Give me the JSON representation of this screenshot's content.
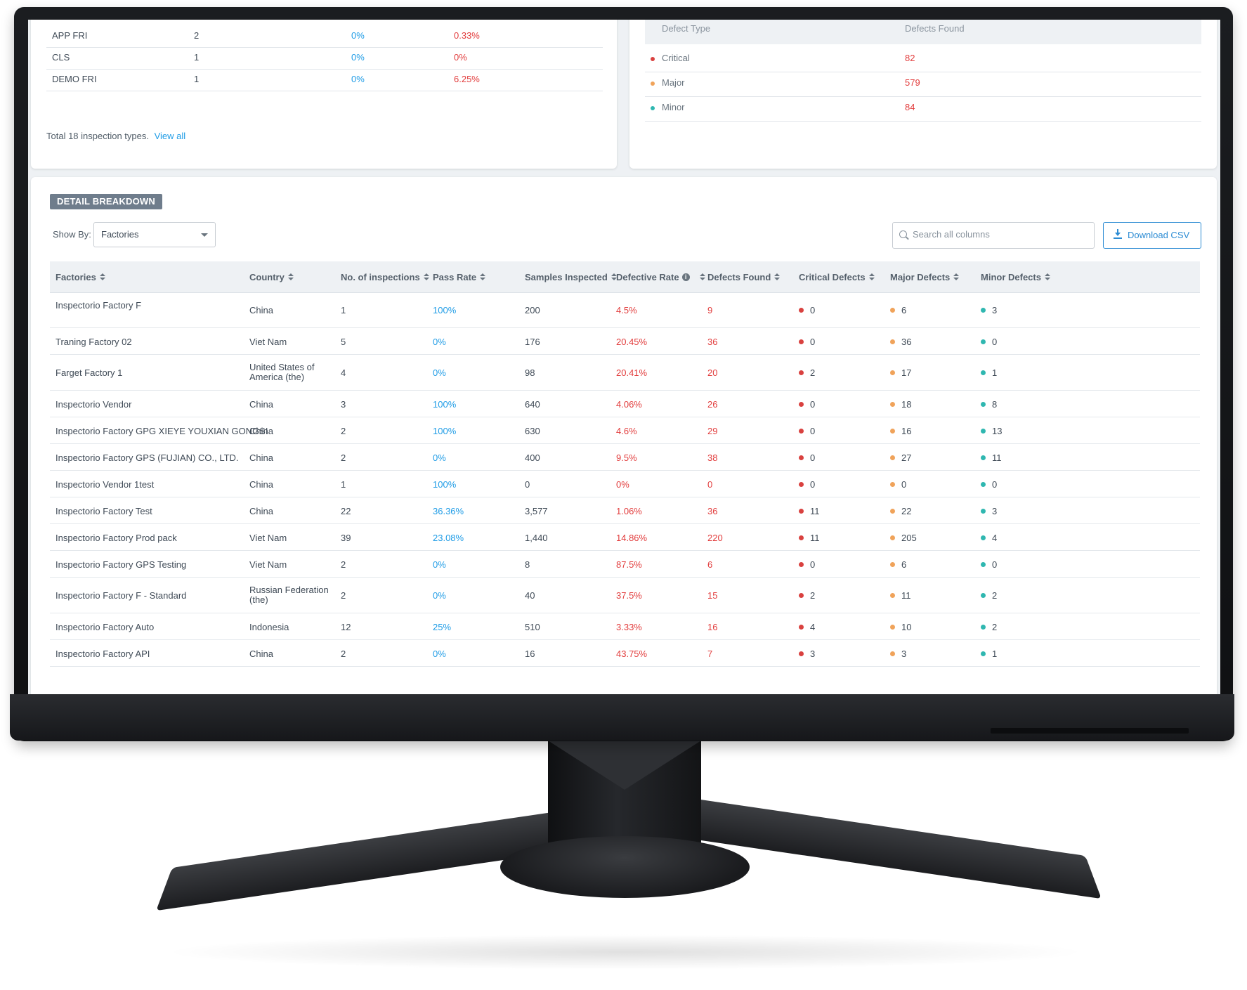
{
  "colors": {
    "critical": "#d9413f",
    "major": "#f0a35a",
    "minor": "#2fb7b0",
    "pass_blue": "#1f9ce6",
    "rate_red": "#e23d3d",
    "badge_bg": "#6f7d8c"
  },
  "inspection_types": {
    "rows": [
      {
        "type": "APP FRI",
        "count": "2",
        "pass_rate": "0%",
        "defective_rate": "0.33%"
      },
      {
        "type": "CLS",
        "count": "1",
        "pass_rate": "0%",
        "defective_rate": "0%"
      },
      {
        "type": "DEMO FRI",
        "count": "1",
        "pass_rate": "0%",
        "defective_rate": "6.25%"
      }
    ],
    "total_text": "Total 18 inspection types.",
    "view_all": "View all"
  },
  "defect_types": {
    "header_type": "Defect Type",
    "header_found": "Defects Found",
    "rows": [
      {
        "name": "Critical",
        "value": "82",
        "color": "#d9413f"
      },
      {
        "name": "Major",
        "value": "579",
        "color": "#f0a35a"
      },
      {
        "name": "Minor",
        "value": "84",
        "color": "#2fb7b0"
      }
    ]
  },
  "detail": {
    "badge": "DETAIL BREAKDOWN",
    "show_by_label": "Show By:",
    "show_by_value": "Factories",
    "search_placeholder": "Search all columns",
    "download_label": "Download CSV",
    "columns": {
      "factory": "Factories",
      "country": "Country",
      "inspections": "No. of inspections",
      "pass_rate": "Pass Rate",
      "samples": "Samples Inspected",
      "defective_rate": "Defective Rate",
      "defects_found": "Defects Found",
      "critical": "Critical Defects",
      "major": "Major Defects",
      "minor": "Minor Defects"
    },
    "rows": [
      {
        "factory": "Inspectorio Factory F",
        "country": "China",
        "inspections": "1",
        "pass_rate": "100%",
        "samples": "200",
        "defective_rate": "4.5%",
        "defects_found": "9",
        "critical": "0",
        "major": "6",
        "minor": "3"
      },
      {
        "factory": "Traning Factory 02",
        "country": "Viet Nam",
        "inspections": "5",
        "pass_rate": "0%",
        "samples": "176",
        "defective_rate": "20.45%",
        "defects_found": "36",
        "critical": "0",
        "major": "36",
        "minor": "0"
      },
      {
        "factory": "Farget Factory 1",
        "country": "United States of America (the)",
        "inspections": "4",
        "pass_rate": "0%",
        "samples": "98",
        "defective_rate": "20.41%",
        "defects_found": "20",
        "critical": "2",
        "major": "17",
        "minor": "1"
      },
      {
        "factory": "Inspectorio Vendor",
        "country": "China",
        "inspections": "3",
        "pass_rate": "100%",
        "samples": "640",
        "defective_rate": "4.06%",
        "defects_found": "26",
        "critical": "0",
        "major": "18",
        "minor": "8"
      },
      {
        "factory": "Inspectorio Factory GPG XIEYE YOUXIAN GONGSI",
        "country": "China",
        "inspections": "2",
        "pass_rate": "100%",
        "samples": "630",
        "defective_rate": "4.6%",
        "defects_found": "29",
        "critical": "0",
        "major": "16",
        "minor": "13"
      },
      {
        "factory": "Inspectorio Factory GPS (FUJIAN) CO., LTD.",
        "country": "China",
        "inspections": "2",
        "pass_rate": "0%",
        "samples": "400",
        "defective_rate": "9.5%",
        "defects_found": "38",
        "critical": "0",
        "major": "27",
        "minor": "11"
      },
      {
        "factory": "Inspectorio Vendor 1test",
        "country": "China",
        "inspections": "1",
        "pass_rate": "100%",
        "samples": "0",
        "defective_rate": "0%",
        "defects_found": "0",
        "critical": "0",
        "major": "0",
        "minor": "0"
      },
      {
        "factory": "Inspectorio Factory Test",
        "country": "China",
        "inspections": "22",
        "pass_rate": "36.36%",
        "samples": "3,577",
        "defective_rate": "1.06%",
        "defects_found": "36",
        "critical": "11",
        "major": "22",
        "minor": "3"
      },
      {
        "factory": "Inspectorio Factory Prod pack",
        "country": "Viet Nam",
        "inspections": "39",
        "pass_rate": "23.08%",
        "samples": "1,440",
        "defective_rate": "14.86%",
        "defects_found": "220",
        "critical": "11",
        "major": "205",
        "minor": "4"
      },
      {
        "factory": "Inspectorio Factory GPS Testing",
        "country": "Viet Nam",
        "inspections": "2",
        "pass_rate": "0%",
        "samples": "8",
        "defective_rate": "87.5%",
        "defects_found": "6",
        "critical": "0",
        "major": "6",
        "minor": "0"
      },
      {
        "factory": "Inspectorio Factory F - Standard",
        "country": "Russian Federation (the)",
        "inspections": "2",
        "pass_rate": "0%",
        "samples": "40",
        "defective_rate": "37.5%",
        "defects_found": "15",
        "critical": "2",
        "major": "11",
        "minor": "2"
      },
      {
        "factory": "Inspectorio Factory Auto",
        "country": "Indonesia",
        "inspections": "12",
        "pass_rate": "25%",
        "samples": "510",
        "defective_rate": "3.33%",
        "defects_found": "16",
        "critical": "4",
        "major": "10",
        "minor": "2"
      },
      {
        "factory": "Inspectorio Factory API",
        "country": "China",
        "inspections": "2",
        "pass_rate": "0%",
        "samples": "16",
        "defective_rate": "43.75%",
        "defects_found": "7",
        "critical": "3",
        "major": "3",
        "minor": "1"
      }
    ]
  }
}
